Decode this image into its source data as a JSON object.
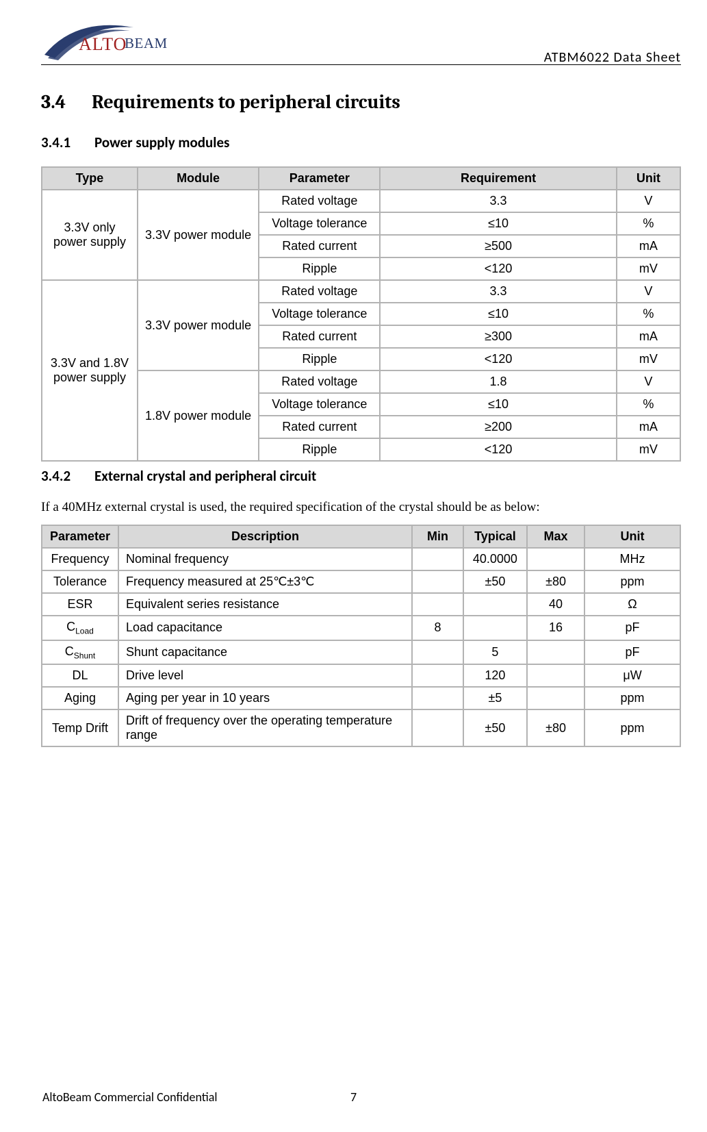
{
  "header": {
    "logo_brand_a": "ALTO",
    "logo_brand_b": "BEAM",
    "doc_title": "ATBM6022  Data  Sheet",
    "logo_swoosh_color_outer": "#2a3d6e",
    "logo_swoosh_color_inner": "#2a3d6e"
  },
  "section": {
    "h1_num": "3.4",
    "h1_title": "Requirements to peripheral circuits",
    "h2a_num": "3.4.1",
    "h2a_title": "Power supply modules",
    "h2b_num": "3.4.2",
    "h2b_title": "External crystal and peripheral circuit",
    "body_342": "If a 40MHz external crystal is used, the required specification of the crystal should be as below:"
  },
  "table1": {
    "headers": [
      "Type",
      "Module",
      "Parameter",
      "Requirement",
      "Unit"
    ],
    "col_widths_pct": [
      15,
      19,
      19,
      37,
      10
    ],
    "header_bg": "#d9d9d9",
    "border_color": "#b3b3b3",
    "groups": [
      {
        "type": "3.3V only power supply",
        "modules": [
          {
            "module": "3.3V power module",
            "rows": [
              {
                "param": "Rated voltage",
                "req": "3.3",
                "unit": "V"
              },
              {
                "param": "Voltage tolerance",
                "req": "≤10",
                "unit": "%"
              },
              {
                "param": "Rated current",
                "req": "≥500",
                "unit": "mA"
              },
              {
                "param": "Ripple",
                "req": "<120",
                "unit": "mV"
              }
            ]
          }
        ]
      },
      {
        "type": "3.3V and 1.8V power supply",
        "modules": [
          {
            "module": "3.3V power module",
            "rows": [
              {
                "param": "Rated voltage",
                "req": "3.3",
                "unit": "V"
              },
              {
                "param": "Voltage tolerance",
                "req": "≤10",
                "unit": "%"
              },
              {
                "param": "Rated current",
                "req": "≥300",
                "unit": "mA"
              },
              {
                "param": "Ripple",
                "req": "<120",
                "unit": "mV"
              }
            ]
          },
          {
            "module": "1.8V power module",
            "rows": [
              {
                "param": "Rated voltage",
                "req": "1.8",
                "unit": "V"
              },
              {
                "param": "Voltage tolerance",
                "req": "≤10",
                "unit": "%"
              },
              {
                "param": "Rated current",
                "req": "≥200",
                "unit": "mA"
              },
              {
                "param": "Ripple",
                "req": "<120",
                "unit": "mV"
              }
            ]
          }
        ]
      }
    ]
  },
  "table2": {
    "headers": [
      "Parameter",
      "Description",
      "Min",
      "Typical",
      "Max",
      "Unit"
    ],
    "col_widths_pct": [
      12,
      46,
      8,
      10,
      9,
      15
    ],
    "header_bg": "#d9d9d9",
    "border_color": "#b3b3b3",
    "rows": [
      {
        "param": "Frequency",
        "param_sub": "",
        "desc": "Nominal frequency",
        "min": "",
        "typ": "40.0000",
        "max": "",
        "unit": "MHz"
      },
      {
        "param": "Tolerance",
        "param_sub": "",
        "desc": "Frequency measured at 25℃±3℃",
        "min": "",
        "typ": "±50",
        "max": "±80",
        "unit": "ppm"
      },
      {
        "param": "ESR",
        "param_sub": "",
        "desc": "Equivalent series resistance",
        "min": "",
        "typ": "",
        "max": "40",
        "unit": "Ω"
      },
      {
        "param": "C",
        "param_sub": "Load",
        "desc": "Load capacitance",
        "min": "8",
        "typ": "",
        "max": "16",
        "unit": "pF"
      },
      {
        "param": "C",
        "param_sub": "Shunt",
        "desc": "Shunt capacitance",
        "min": "",
        "typ": "5",
        "max": "",
        "unit": "pF"
      },
      {
        "param": "DL",
        "param_sub": "",
        "desc": "Drive level",
        "min": "",
        "typ": "120",
        "max": "",
        "unit": "μW"
      },
      {
        "param": "Aging",
        "param_sub": "",
        "desc": "Aging per year in 10 years",
        "min": "",
        "typ": "±5",
        "max": "",
        "unit": "ppm"
      },
      {
        "param": "Temp Drift",
        "param_sub": "",
        "desc": "Drift of frequency over the operating temperature range",
        "min": "",
        "typ": "±50",
        "max": "±80",
        "unit": "ppm"
      }
    ]
  },
  "footer": {
    "left": "AltoBeam Commercial Confidential",
    "page": "7"
  }
}
